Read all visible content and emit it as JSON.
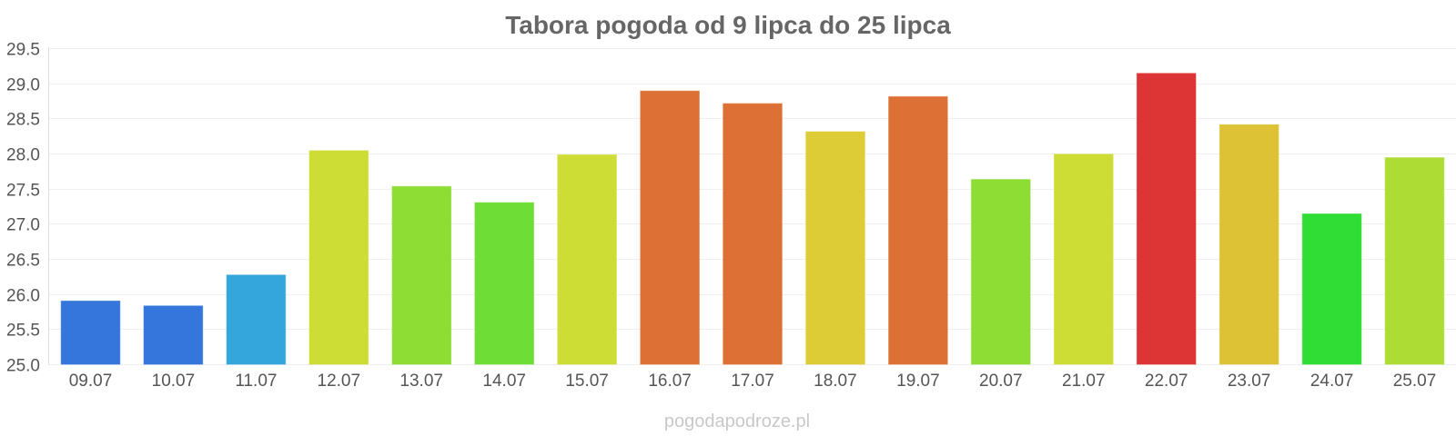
{
  "chart_data": {
    "type": "bar",
    "title": "Tabora pogoda od 9 lipca do 25 lipca",
    "categories": [
      "09.07",
      "10.07",
      "11.07",
      "12.07",
      "13.07",
      "14.07",
      "15.07",
      "16.07",
      "17.07",
      "18.07",
      "19.07",
      "20.07",
      "21.07",
      "22.07",
      "23.07",
      "24.07",
      "25.07"
    ],
    "values": [
      25.9,
      25.83,
      26.27,
      28.04,
      27.53,
      27.3,
      27.98,
      28.89,
      28.71,
      28.31,
      28.81,
      27.63,
      27.99,
      29.14,
      28.41,
      27.14,
      27.94
    ],
    "colors": [
      "#3476db",
      "#3476db",
      "#35a6db",
      "#cedd35",
      "#8ddd35",
      "#6edd35",
      "#cedd35",
      "#dd7035",
      "#dd7035",
      "#ddcc35",
      "#dd7035",
      "#8ddd35",
      "#cedd35",
      "#dd3535",
      "#ddc235",
      "#2fdd35",
      "#addd35"
    ],
    "ylim": [
      25.0,
      29.5
    ],
    "yticks": [
      "25.0",
      "25.5",
      "26.0",
      "26.5",
      "27.0",
      "27.5",
      "28.0",
      "28.5",
      "29.0",
      "29.5"
    ],
    "grid": true,
    "legend": "none"
  },
  "watermark": "pogodapodroze.pl"
}
